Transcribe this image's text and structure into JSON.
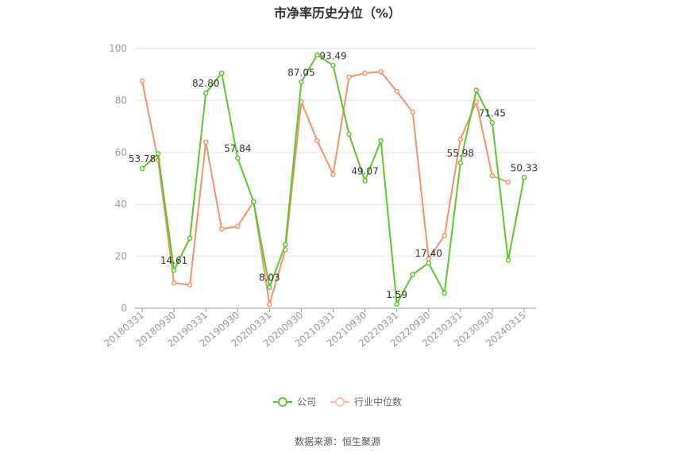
{
  "chart_data": {
    "type": "line",
    "title": "市净率历史分位（%）",
    "ylim": [
      0,
      100
    ],
    "yticks": [
      0,
      20,
      40,
      60,
      80,
      100
    ],
    "xtick_labels": [
      "20180331",
      "20180930",
      "20190331",
      "20190930",
      "20200331",
      "20200930",
      "20210331",
      "20210930",
      "20220331",
      "20220930",
      "20230331",
      "20230930",
      "20240315"
    ],
    "x": [
      "20180331",
      "20180630",
      "20180930",
      "20181231",
      "20190331",
      "20190630",
      "20190930",
      "20191231",
      "20200331",
      "20200630",
      "20200930",
      "20201231",
      "20210331",
      "20210630",
      "20210930",
      "20211231",
      "20220331",
      "20220630",
      "20220930",
      "20221231",
      "20230331",
      "20230630",
      "20230930",
      "20231231",
      "20240315"
    ],
    "grid": true,
    "legend_position": "bottom",
    "series": [
      {
        "name": "公司",
        "color": "#5ac72a",
        "values": [
          53.78,
          59.5,
          14.61,
          27.0,
          82.8,
          90.5,
          57.84,
          41.0,
          8.03,
          24.5,
          87.05,
          97.5,
          93.49,
          67.0,
          49.07,
          64.5,
          1.59,
          13.0,
          17.4,
          5.8,
          55.98,
          84.0,
          71.45,
          18.5,
          50.33
        ],
        "labels": {
          "0": "53.78",
          "2": "14.61",
          "4": "82.80",
          "6": "57.84",
          "8": "8.03",
          "10": "87.05",
          "12": "93.49",
          "14": "49.07",
          "16": "1.59",
          "18": "17.40",
          "20": "55.98",
          "22": "71.45",
          "24": "50.33"
        }
      },
      {
        "name": "行业中位数",
        "color": "#f0926a",
        "values": [
          87.5,
          57.0,
          9.7,
          9.0,
          64.0,
          30.5,
          31.5,
          41.0,
          1.5,
          22.5,
          79.5,
          64.5,
          51.5,
          89.0,
          90.5,
          91.0,
          83.5,
          75.5,
          19.0,
          28.0,
          65.0,
          79.5,
          51.0,
          48.5,
          null
        ]
      }
    ]
  },
  "legend": {
    "company": "公司",
    "industry": "行业中位数"
  },
  "source": "数据来源：恒生聚源"
}
